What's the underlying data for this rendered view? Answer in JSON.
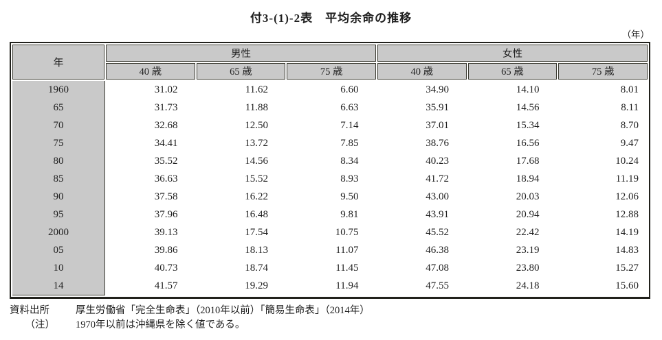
{
  "title": "付3-(1)-2表　平均余命の推移",
  "unit_label": "（年）",
  "table": {
    "year_header": "年",
    "groups": [
      {
        "label": "男性"
      },
      {
        "label": "女性"
      }
    ],
    "age_headers": [
      "40 歳",
      "65 歳",
      "75 歳",
      "40 歳",
      "65 歳",
      "75 歳"
    ],
    "rows": [
      {
        "year": "1960",
        "values": [
          "31.02",
          "11.62",
          "6.60",
          "34.90",
          "14.10",
          "8.01"
        ]
      },
      {
        "year": "65",
        "values": [
          "31.73",
          "11.88",
          "6.63",
          "35.91",
          "14.56",
          "8.11"
        ]
      },
      {
        "year": "70",
        "values": [
          "32.68",
          "12.50",
          "7.14",
          "37.01",
          "15.34",
          "8.70"
        ]
      },
      {
        "year": "75",
        "values": [
          "34.41",
          "13.72",
          "7.85",
          "38.76",
          "16.56",
          "9.47"
        ]
      },
      {
        "year": "80",
        "values": [
          "35.52",
          "14.56",
          "8.34",
          "40.23",
          "17.68",
          "10.24"
        ]
      },
      {
        "year": "85",
        "values": [
          "36.63",
          "15.52",
          "8.93",
          "41.72",
          "18.94",
          "11.19"
        ]
      },
      {
        "year": "90",
        "values": [
          "37.58",
          "16.22",
          "9.50",
          "43.00",
          "20.03",
          "12.06"
        ]
      },
      {
        "year": "95",
        "values": [
          "37.96",
          "16.48",
          "9.81",
          "43.91",
          "20.94",
          "12.88"
        ]
      },
      {
        "year": "2000",
        "values": [
          "39.13",
          "17.54",
          "10.75",
          "45.52",
          "22.42",
          "14.19"
        ]
      },
      {
        "year": "05",
        "values": [
          "39.86",
          "18.13",
          "11.07",
          "46.38",
          "23.19",
          "14.83"
        ]
      },
      {
        "year": "10",
        "values": [
          "40.73",
          "18.74",
          "11.45",
          "47.08",
          "23.80",
          "15.27"
        ]
      },
      {
        "year": "14",
        "values": [
          "41.57",
          "19.29",
          "11.94",
          "47.55",
          "24.18",
          "15.60"
        ]
      }
    ]
  },
  "footer": {
    "source_label": "資料出所",
    "source_text": "厚生労働省「完全生命表」（2010年以前）「簡易生命表」（2014年）",
    "note_label": "（注）",
    "note_text": "1970年以前は沖縄県を除く値である。"
  },
  "colors": {
    "header_bg": "#c9c9c9",
    "cell_border": "#3c3c33",
    "outer_border": "#21211c",
    "text": "#1f1f1f"
  }
}
